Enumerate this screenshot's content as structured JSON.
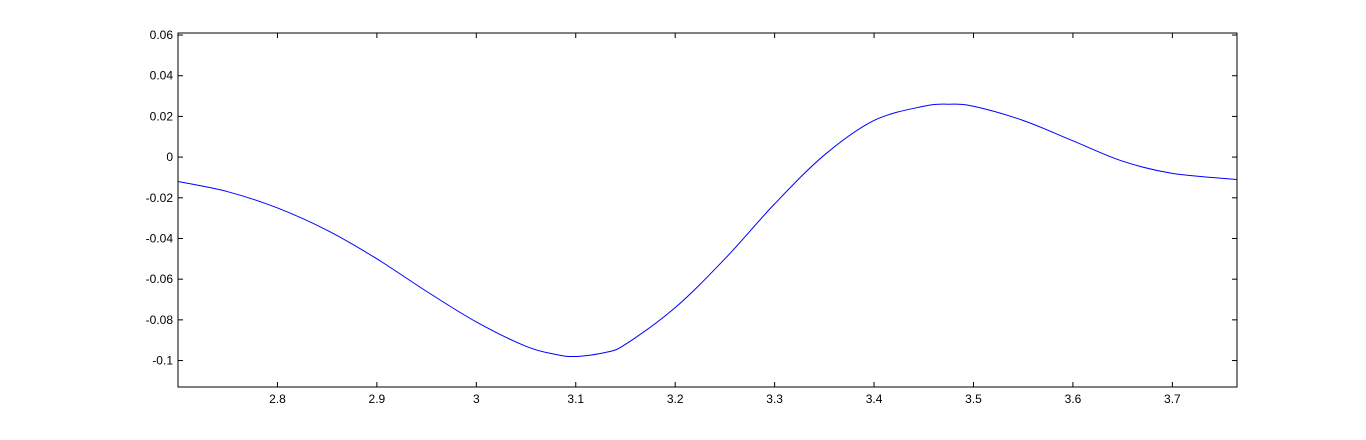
{
  "chart_data": {
    "type": "line",
    "title": "",
    "xlabel": "",
    "ylabel": "",
    "xlim": [
      2.7,
      3.765
    ],
    "ylim": [
      -0.113,
      0.061
    ],
    "grid": false,
    "box": true,
    "xticks": [
      2.8,
      2.9,
      3.0,
      3.1,
      3.2,
      3.3,
      3.4,
      3.5,
      3.6,
      3.7
    ],
    "xtick_labels": [
      "2.8",
      "2.9",
      "3",
      "3.1",
      "3.2",
      "3.3",
      "3.4",
      "3.5",
      "3.6",
      "3.7"
    ],
    "yticks": [
      0.06,
      0.04,
      0.02,
      0,
      -0.02,
      -0.04,
      -0.06,
      -0.08,
      -0.1
    ],
    "ytick_labels": [
      "0.06",
      "0.04",
      "0.02",
      "0",
      "-0.02",
      "-0.04",
      "-0.06",
      "-0.08",
      "-0.1"
    ],
    "series": [
      {
        "color": "#0000ff",
        "x": [
          2.7,
          2.75,
          2.8,
          2.85,
          2.9,
          2.95,
          3.0,
          3.05,
          3.08,
          3.1,
          3.13,
          3.15,
          3.2,
          3.25,
          3.3,
          3.35,
          3.4,
          3.45,
          3.475,
          3.5,
          3.55,
          3.6,
          3.65,
          3.7,
          3.765
        ],
        "y": [
          -0.012,
          -0.017,
          -0.025,
          -0.036,
          -0.05,
          -0.066,
          -0.081,
          -0.093,
          -0.097,
          -0.098,
          -0.096,
          -0.092,
          -0.074,
          -0.05,
          -0.023,
          0.001,
          0.018,
          0.025,
          0.026,
          0.025,
          0.018,
          0.008,
          -0.002,
          -0.008,
          -0.011
        ]
      }
    ]
  }
}
